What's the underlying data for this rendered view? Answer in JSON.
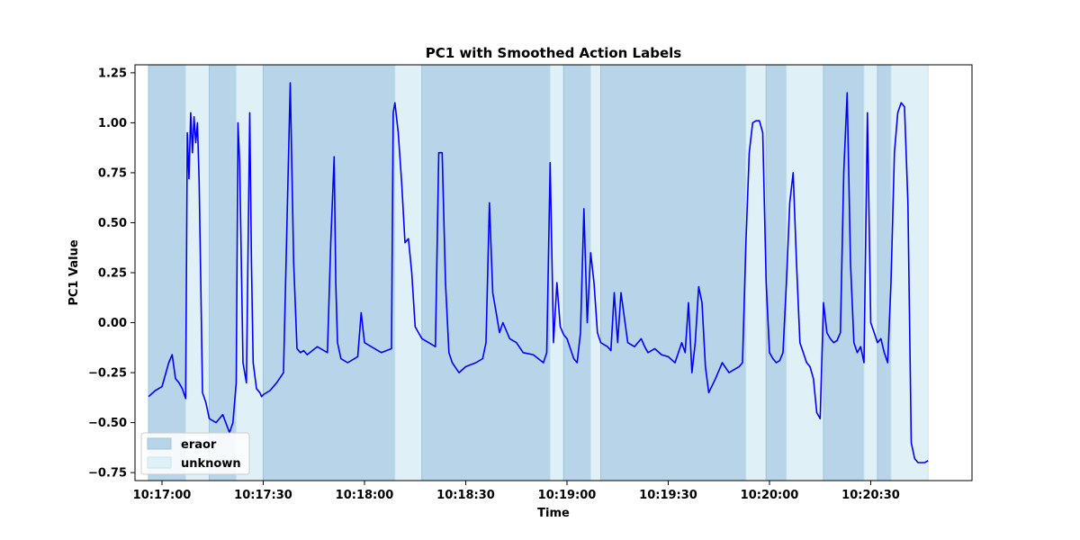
{
  "chart_data": {
    "type": "line",
    "title": "PC1 with Smoothed Action Labels",
    "xlabel": "Time",
    "ylabel": "PC1 Value",
    "xlim": [
      "10:16:52",
      "10:21:00"
    ],
    "ylim": [
      -0.79,
      1.29
    ],
    "x_ticks": [
      "10:17:00",
      "10:17:30",
      "10:18:00",
      "10:18:30",
      "10:19:00",
      "10:19:30",
      "10:20:00",
      "10:20:30"
    ],
    "y_ticks": [
      -0.75,
      -0.5,
      -0.25,
      0.0,
      0.25,
      0.5,
      0.75,
      1.0,
      1.25
    ],
    "y_tick_labels": [
      "−0.75",
      "−0.50",
      "−0.25",
      "0.00",
      "0.25",
      "0.50",
      "0.75",
      "1.00",
      "1.25"
    ],
    "grid": false,
    "legend": {
      "placement": "lower-left",
      "entries": [
        {
          "label": "eraor",
          "color": "#b8d4e8"
        },
        {
          "label": "unknown",
          "color": "#dff0f7"
        }
      ]
    },
    "regions": [
      {
        "start": "10:16:56",
        "end": "10:17:07",
        "label": "eraor"
      },
      {
        "start": "10:17:07",
        "end": "10:17:14",
        "label": "unknown"
      },
      {
        "start": "10:17:14",
        "end": "10:17:22",
        "label": "eraor"
      },
      {
        "start": "10:17:22",
        "end": "10:17:30",
        "label": "unknown"
      },
      {
        "start": "10:17:30",
        "end": "10:18:09",
        "label": "eraor"
      },
      {
        "start": "10:18:09",
        "end": "10:18:17",
        "label": "unknown"
      },
      {
        "start": "10:18:17",
        "end": "10:18:55",
        "label": "eraor"
      },
      {
        "start": "10:18:55",
        "end": "10:18:59",
        "label": "unknown"
      },
      {
        "start": "10:18:59",
        "end": "10:19:07",
        "label": "eraor"
      },
      {
        "start": "10:19:07",
        "end": "10:19:10",
        "label": "unknown"
      },
      {
        "start": "10:19:10",
        "end": "10:19:53",
        "label": "eraor"
      },
      {
        "start": "10:19:53",
        "end": "10:19:59",
        "label": "unknown"
      },
      {
        "start": "10:19:59",
        "end": "10:20:05",
        "label": "eraor"
      },
      {
        "start": "10:20:05",
        "end": "10:20:16",
        "label": "unknown"
      },
      {
        "start": "10:20:16",
        "end": "10:20:28",
        "label": "eraor"
      },
      {
        "start": "10:20:28",
        "end": "10:20:32",
        "label": "unknown"
      },
      {
        "start": "10:20:32",
        "end": "10:20:36",
        "label": "eraor"
      },
      {
        "start": "10:20:36",
        "end": "10:20:47",
        "label": "unknown"
      }
    ],
    "series": [
      {
        "color": "#0000ff",
        "x": [
          "10:16:56",
          "10:16:58",
          "10:17:00",
          "10:17:02",
          "10:17:03",
          "10:17:04",
          "10:17:05",
          "10:17:06",
          "10:17:07",
          "10:17:07.5",
          "10:17:08",
          "10:17:08.5",
          "10:17:09",
          "10:17:09.5",
          "10:17:10",
          "10:17:10.5",
          "10:17:11",
          "10:17:11.5",
          "10:17:12",
          "10:17:13",
          "10:17:14",
          "10:17:16",
          "10:17:18",
          "10:17:20",
          "10:17:21",
          "10:17:22",
          "10:17:22.5",
          "10:17:23",
          "10:17:24",
          "10:17:25",
          "10:17:26",
          "10:17:26.5",
          "10:17:27",
          "10:17:28",
          "10:17:29",
          "10:17:29.5",
          "10:17:30",
          "10:17:32",
          "10:17:34",
          "10:17:36",
          "10:17:38",
          "10:17:39",
          "10:17:40",
          "10:17:41",
          "10:17:42",
          "10:17:43",
          "10:17:46",
          "10:17:49",
          "10:17:50",
          "10:17:51",
          "10:17:51.5",
          "10:17:52",
          "10:17:53",
          "10:17:55",
          "10:17:58",
          "10:17:59",
          "10:18:00",
          "10:18:02",
          "10:18:05",
          "10:18:08",
          "10:18:08.5",
          "10:18:09",
          "10:18:10",
          "10:18:11",
          "10:18:12",
          "10:18:13",
          "10:18:14",
          "10:18:15",
          "10:18:16",
          "10:18:17",
          "10:18:19",
          "10:18:21",
          "10:18:22",
          "10:18:23",
          "10:18:24",
          "10:18:25",
          "10:18:26",
          "10:18:28",
          "10:18:30",
          "10:18:33",
          "10:18:35",
          "10:18:36",
          "10:18:37",
          "10:18:38",
          "10:18:39",
          "10:18:40",
          "10:18:41",
          "10:18:43",
          "10:18:45",
          "10:18:47",
          "10:18:50",
          "10:18:53",
          "10:18:54",
          "10:18:55",
          "10:18:56",
          "10:18:57",
          "10:18:58",
          "10:18:59",
          "10:19:00",
          "10:19:02",
          "10:19:03",
          "10:19:04",
          "10:19:05",
          "10:19:06",
          "10:19:07",
          "10:19:08",
          "10:19:09",
          "10:19:10",
          "10:19:12",
          "10:19:13",
          "10:19:14",
          "10:19:15",
          "10:19:16",
          "10:19:18",
          "10:19:20",
          "10:19:22",
          "10:19:23",
          "10:19:24",
          "10:19:26",
          "10:19:28",
          "10:19:30",
          "10:19:32",
          "10:19:34",
          "10:19:35",
          "10:19:36",
          "10:19:37",
          "10:19:38",
          "10:19:39",
          "10:19:40",
          "10:19:41",
          "10:19:42",
          "10:19:44",
          "10:19:46",
          "10:19:48",
          "10:19:50",
          "10:19:51",
          "10:19:52",
          "10:19:53",
          "10:19:54",
          "10:19:55",
          "10:19:56",
          "10:19:57",
          "10:19:58",
          "10:19:59",
          "10:20:00",
          "10:20:01",
          "10:20:02",
          "10:20:03",
          "10:20:04",
          "10:20:05",
          "10:20:06",
          "10:20:07",
          "10:20:08",
          "10:20:09",
          "10:20:10",
          "10:20:11",
          "10:20:12",
          "10:20:13",
          "10:20:14",
          "10:20:15",
          "10:20:16",
          "10:20:17",
          "10:20:18",
          "10:20:19",
          "10:20:20",
          "10:20:21",
          "10:20:22",
          "10:20:23",
          "10:20:24",
          "10:20:25",
          "10:20:26",
          "10:20:27",
          "10:20:28",
          "10:20:29",
          "10:20:30",
          "10:20:31",
          "10:20:32",
          "10:20:33",
          "10:20:34",
          "10:20:35",
          "10:20:36",
          "10:20:37",
          "10:20:38",
          "10:20:39",
          "10:20:40",
          "10:20:41",
          "10:20:42",
          "10:20:43",
          "10:20:44",
          "10:20:45",
          "10:20:46",
          "10:20:47"
        ],
        "y": [
          -0.37,
          -0.34,
          -0.32,
          -0.2,
          -0.16,
          -0.28,
          -0.3,
          -0.33,
          -0.38,
          0.95,
          0.72,
          1.05,
          0.85,
          1.03,
          0.9,
          1.0,
          0.7,
          0.2,
          -0.35,
          -0.4,
          -0.48,
          -0.5,
          -0.46,
          -0.55,
          -0.5,
          -0.3,
          1.0,
          0.8,
          -0.2,
          -0.3,
          1.05,
          0.3,
          -0.2,
          -0.33,
          -0.35,
          -0.37,
          -0.36,
          -0.34,
          -0.3,
          -0.25,
          1.2,
          0.3,
          -0.13,
          -0.15,
          -0.14,
          -0.16,
          -0.12,
          -0.15,
          0.4,
          0.83,
          0.2,
          -0.1,
          -0.18,
          -0.2,
          -0.17,
          0.05,
          -0.1,
          -0.12,
          -0.15,
          -0.13,
          1.05,
          1.1,
          0.95,
          0.7,
          0.4,
          0.42,
          0.25,
          -0.02,
          -0.05,
          -0.08,
          -0.1,
          -0.12,
          0.85,
          0.85,
          0.2,
          -0.15,
          -0.2,
          -0.25,
          -0.22,
          -0.2,
          -0.18,
          -0.1,
          0.6,
          0.15,
          0.05,
          -0.05,
          0.0,
          -0.08,
          -0.1,
          -0.15,
          -0.16,
          -0.2,
          -0.15,
          0.8,
          -0.1,
          0.2,
          -0.02,
          -0.06,
          -0.08,
          -0.18,
          -0.2,
          -0.05,
          0.57,
          0.0,
          0.35,
          0.2,
          -0.05,
          -0.1,
          -0.12,
          -0.14,
          0.15,
          -0.1,
          0.15,
          -0.1,
          -0.12,
          -0.08,
          -0.12,
          -0.15,
          -0.13,
          -0.16,
          -0.17,
          -0.2,
          -0.1,
          -0.15,
          0.1,
          -0.25,
          -0.1,
          0.18,
          0.1,
          -0.22,
          -0.35,
          -0.28,
          -0.2,
          -0.25,
          -0.23,
          -0.22,
          -0.2,
          0.4,
          0.85,
          1.0,
          1.01,
          1.01,
          0.95,
          0.2,
          -0.15,
          -0.18,
          -0.2,
          -0.19,
          -0.15,
          0.2,
          0.6,
          0.75,
          0.3,
          -0.1,
          -0.15,
          -0.2,
          -0.22,
          -0.28,
          -0.45,
          -0.48,
          0.1,
          -0.05,
          -0.08,
          -0.1,
          -0.09,
          -0.05,
          0.75,
          1.15,
          0.3,
          -0.1,
          -0.15,
          -0.12,
          -0.2,
          1.05,
          0.0,
          -0.05,
          -0.1,
          -0.08,
          -0.15,
          -0.2,
          0.2,
          0.85,
          1.05,
          1.1,
          1.08,
          0.6,
          -0.6,
          -0.68,
          -0.7,
          -0.7,
          -0.7,
          -0.69
        ]
      }
    ]
  }
}
